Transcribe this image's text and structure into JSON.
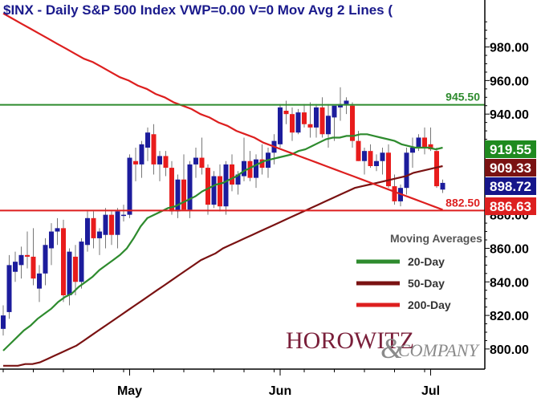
{
  "chart_data": {
    "type": "candlestick",
    "title": "$INX - Daily   S&P 500 Index   VWP=0.00   V=0   Mov Avg 2 Lines (",
    "ylim": [
      788,
      1008
    ],
    "y_ticks": [
      800,
      820,
      840,
      860,
      880,
      900,
      920,
      940,
      960,
      980
    ],
    "y_tick_labels": [
      "800.00",
      "820.00",
      "840.00",
      "860.00",
      "880.00",
      "900.00",
      "920.00",
      "940.00",
      "960.00",
      "980.00"
    ],
    "x_ticks": [
      {
        "label": "May",
        "index": 21
      },
      {
        "label": "Jun",
        "index": 46
      },
      {
        "label": "Jul",
        "index": 71
      }
    ],
    "candles": [
      [
        812,
        826,
        808,
        820
      ],
      [
        822,
        856,
        818,
        850
      ],
      [
        846,
        858,
        840,
        852
      ],
      [
        850,
        861,
        842,
        856
      ],
      [
        856,
        870,
        848,
        855
      ],
      [
        855,
        872,
        838,
        842
      ],
      [
        836,
        850,
        828,
        845
      ],
      [
        845,
        866,
        838,
        862
      ],
      [
        860,
        875,
        850,
        870
      ],
      [
        870,
        878,
        862,
        872
      ],
      [
        872,
        877,
        828,
        832
      ],
      [
        832,
        860,
        826,
        858
      ],
      [
        855,
        862,
        832,
        840
      ],
      [
        840,
        866,
        836,
        864
      ],
      [
        862,
        882,
        858,
        878
      ],
      [
        878,
        882,
        860,
        866
      ],
      [
        866,
        872,
        856,
        870
      ],
      [
        868,
        884,
        860,
        880
      ],
      [
        880,
        882,
        862,
        868
      ],
      [
        868,
        884,
        860,
        882
      ],
      [
        880,
        886,
        876,
        880
      ],
      [
        880,
        916,
        878,
        914
      ],
      [
        912,
        920,
        900,
        910
      ],
      [
        910,
        924,
        902,
        922
      ],
      [
        920,
        932,
        912,
        929
      ],
      [
        928,
        934,
        904,
        910
      ],
      [
        910,
        918,
        900,
        915
      ],
      [
        915,
        918,
        903,
        908
      ],
      [
        908,
        912,
        880,
        882
      ],
      [
        882,
        904,
        878,
        901
      ],
      [
        901,
        916,
        884,
        883
      ],
      [
        883,
        912,
        878,
        910
      ],
      [
        910,
        920,
        902,
        914
      ],
      [
        914,
        926,
        904,
        908
      ],
      [
        908,
        910,
        880,
        886
      ],
      [
        886,
        906,
        884,
        903
      ],
      [
        903,
        910,
        882,
        885
      ],
      [
        885,
        912,
        880,
        910
      ],
      [
        910,
        916,
        894,
        898
      ],
      [
        898,
        906,
        892,
        904
      ],
      [
        903,
        926,
        900,
        912
      ],
      [
        912,
        918,
        900,
        902
      ],
      [
        902,
        916,
        896,
        913
      ],
      [
        913,
        922,
        904,
        908
      ],
      [
        908,
        920,
        902,
        917
      ],
      [
        917,
        928,
        910,
        924
      ],
      [
        922,
        946,
        920,
        944
      ],
      [
        942,
        948,
        934,
        940
      ],
      [
        940,
        944,
        924,
        929
      ],
      [
        929,
        943,
        928,
        941
      ],
      [
        941,
        946,
        932,
        934
      ],
      [
        934,
        947,
        926,
        932
      ],
      [
        932,
        946,
        926,
        944
      ],
      [
        944,
        950,
        926,
        928
      ],
      [
        928,
        946,
        920,
        939
      ],
      [
        938,
        944,
        924,
        945
      ],
      [
        944,
        956,
        936,
        946
      ],
      [
        946,
        950,
        940,
        948
      ],
      [
        945,
        947,
        920,
        924
      ],
      [
        924,
        930,
        912,
        912
      ],
      [
        912,
        920,
        904,
        918
      ],
      [
        918,
        922,
        908,
        909
      ],
      [
        909,
        916,
        906,
        912
      ],
      [
        912,
        920,
        904,
        917
      ],
      [
        917,
        922,
        896,
        897
      ],
      [
        897,
        904,
        886,
        888
      ],
      [
        888,
        898,
        885,
        896
      ],
      [
        896,
        920,
        892,
        917
      ],
      [
        917,
        926,
        908,
        920
      ],
      [
        920,
        928,
        918,
        926
      ],
      [
        926,
        932,
        916,
        920
      ],
      [
        922,
        932,
        918,
        919
      ],
      [
        918,
        920,
        896,
        897
      ],
      [
        895,
        901,
        893,
        899
      ]
    ],
    "series": [
      {
        "name": "20-Day",
        "color": "#2e8b2e",
        "values": [
          799,
          803,
          807,
          811,
          814,
          818,
          821,
          824,
          828,
          831,
          833,
          837,
          840,
          843,
          847,
          850,
          853,
          856,
          860,
          866,
          873,
          878,
          880,
          882,
          884,
          885,
          887,
          889,
          891,
          894,
          896,
          898,
          899,
          901,
          903,
          906,
          908,
          910,
          912,
          913,
          914,
          915,
          916,
          918,
          919,
          921,
          923,
          925,
          926,
          926,
          927,
          927,
          928,
          928,
          927,
          926,
          925,
          924,
          922,
          921,
          920,
          920,
          920,
          919,
          920
        ]
      },
      {
        "name": "50-Day",
        "color": "#7a1212",
        "values": [
          790,
          790,
          790,
          791,
          791,
          792,
          794,
          796,
          798,
          800,
          802,
          805,
          808,
          811,
          814,
          817,
          820,
          823,
          826,
          829,
          832,
          835,
          838,
          841,
          844,
          847,
          850,
          853,
          855,
          857,
          860,
          862,
          864,
          866,
          868,
          870,
          872,
          874,
          876,
          878,
          880,
          882,
          884,
          886,
          888,
          890,
          892,
          894,
          896,
          897,
          898,
          899,
          900,
          901,
          902,
          903,
          905,
          906,
          907,
          908,
          909
        ]
      },
      {
        "name": "200-Day",
        "color": "#dd1f1f",
        "values": [
          1000,
          997,
          994,
          991,
          988,
          985,
          982,
          979,
          976,
          973,
          971,
          968,
          965,
          962,
          960,
          957,
          955,
          952,
          950,
          947,
          945,
          943,
          940,
          938,
          935,
          933,
          930,
          928,
          926,
          923,
          921,
          919,
          917,
          915,
          913,
          911,
          909,
          907,
          905,
          903,
          901,
          899,
          897,
          895,
          893,
          891,
          889,
          887,
          885,
          883
        ]
      }
    ],
    "levels": [
      {
        "value": 945.5,
        "label": "945.50",
        "color": "#2e8b2e"
      },
      {
        "value": 882.5,
        "label": "882.50",
        "color": "#dd1f1f"
      }
    ],
    "last_values": [
      {
        "value": 919.55,
        "label": "919.55",
        "color": "#1f8a1f"
      },
      {
        "value": 909.33,
        "label": "909.33",
        "color": "#7a1212"
      },
      {
        "value": 898.72,
        "label": "898.72",
        "color": "#15158a"
      },
      {
        "value": 886.63,
        "label": "886.63",
        "color": "#dd1f1f"
      }
    ],
    "legend": {
      "title": "Moving Averages",
      "placement": "bottom-right",
      "items": [
        {
          "label": "20-Day",
          "color": "#2e8b2e"
        },
        {
          "label": "50-Day",
          "color": "#7a1212"
        },
        {
          "label": "200-Day",
          "color": "#dd1f1f"
        }
      ]
    },
    "up_color": "#1c1c9c",
    "down_color": "#e81c1c",
    "grid": false
  },
  "branding": {
    "logo_main": "HOROWITZ",
    "logo_amp": "&",
    "logo_sub": "COMPANY"
  }
}
